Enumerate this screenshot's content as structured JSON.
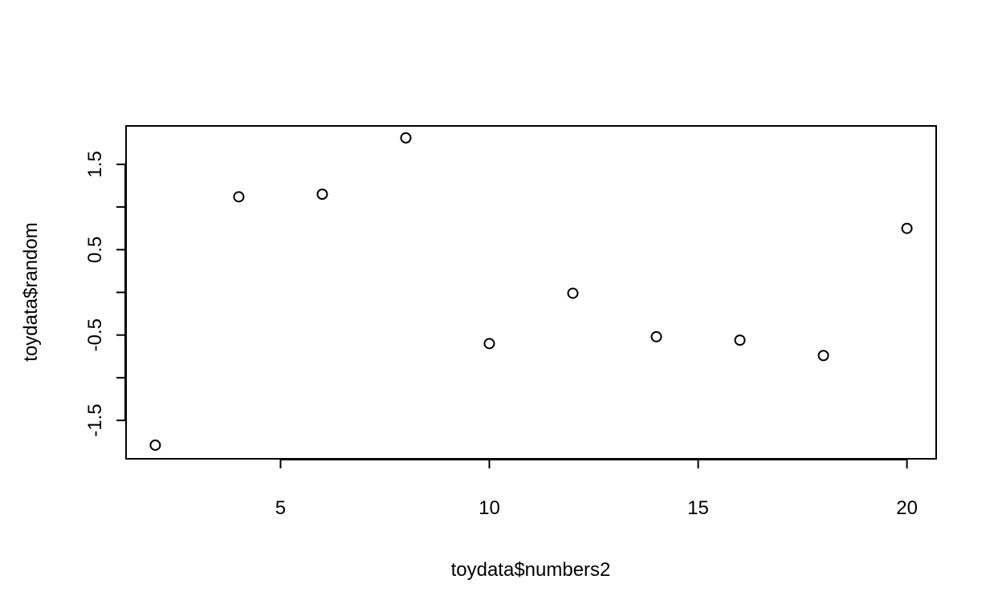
{
  "chart_data": {
    "type": "scatter",
    "title": "",
    "xlabel": "toydata$numbers2",
    "ylabel": "toydata$random",
    "xlim": [
      1.3,
      20.7
    ],
    "ylim": [
      -1.95,
      1.95
    ],
    "xticks": [
      5,
      10,
      15,
      20
    ],
    "xtick_labels": [
      "5",
      "10",
      "15",
      "20"
    ],
    "yticks": [
      -2,
      -1.5,
      -1,
      -0.5,
      0,
      0.5,
      1,
      1.5,
      2
    ],
    "ytick_labels": [
      "",
      "-1.5",
      "",
      "-0.5",
      "",
      "0.5",
      "",
      "1.5",
      ""
    ],
    "grid": false,
    "legend": false,
    "marker": "open-circle",
    "points": [
      {
        "x": 2,
        "y": -1.79
      },
      {
        "x": 4,
        "y": 1.12
      },
      {
        "x": 6,
        "y": 1.15
      },
      {
        "x": 8,
        "y": 1.81
      },
      {
        "x": 10,
        "y": -0.6
      },
      {
        "x": 12,
        "y": -0.01
      },
      {
        "x": 14,
        "y": -0.52
      },
      {
        "x": 16,
        "y": -0.56
      },
      {
        "x": 18,
        "y": -0.74
      },
      {
        "x": 20,
        "y": 0.75
      }
    ]
  }
}
